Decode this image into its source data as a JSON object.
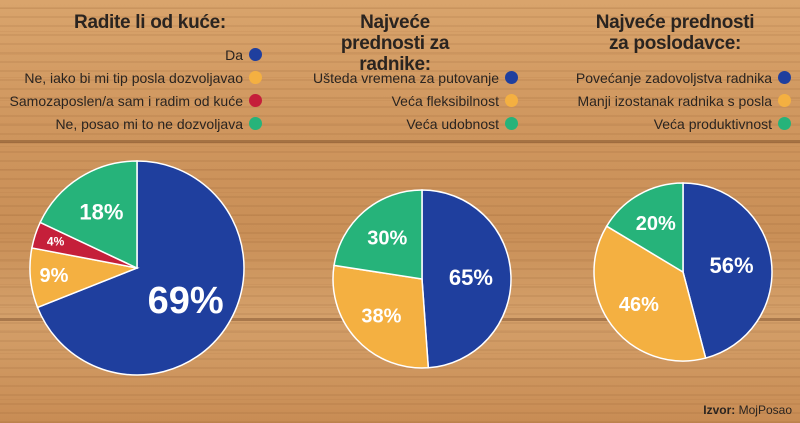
{
  "source": {
    "label": "Izvor:",
    "name": "MojPosao"
  },
  "colors": {
    "blue": "#1f3f9e",
    "yellow": "#f4b041",
    "red": "#c51f3a",
    "green": "#26b37a"
  },
  "chart_data": [
    {
      "type": "pie",
      "title": "Radite li od kuće:",
      "categories": [
        "Da",
        "Ne, iako bi mi tip posla dozvoljavao",
        "Samozaposlen/a sam i radim od kuće",
        "Ne, posao mi to ne dozvoljava"
      ],
      "colors": [
        "#1f3f9e",
        "#f4b041",
        "#c51f3a",
        "#26b37a"
      ],
      "values": [
        69,
        9,
        4,
        18
      ],
      "labels": [
        "69%",
        "9%",
        "4%",
        "18%"
      ],
      "legend": "top"
    },
    {
      "type": "pie",
      "title": "Najveće prednosti za radnike:",
      "categories": [
        "Ušteda vremena za putovanje",
        "Veća fleksibilnost",
        "Veća udobnost"
      ],
      "colors": [
        "#1f3f9e",
        "#f4b041",
        "#26b37a"
      ],
      "values": [
        65,
        38,
        30
      ],
      "labels": [
        "65%",
        "38%",
        "30%"
      ],
      "legend": "top"
    },
    {
      "type": "pie",
      "title": "Najveće prednosti za poslodavce:",
      "categories": [
        "Povećanje zadovoljstva radnika",
        "Manji izostanak radnika s posla",
        "Veća produktivnost"
      ],
      "colors": [
        "#1f3f9e",
        "#f4b041",
        "#26b37a"
      ],
      "values": [
        56,
        46,
        20
      ],
      "labels": [
        "56%",
        "46%",
        "20%"
      ],
      "legend": "top"
    }
  ]
}
